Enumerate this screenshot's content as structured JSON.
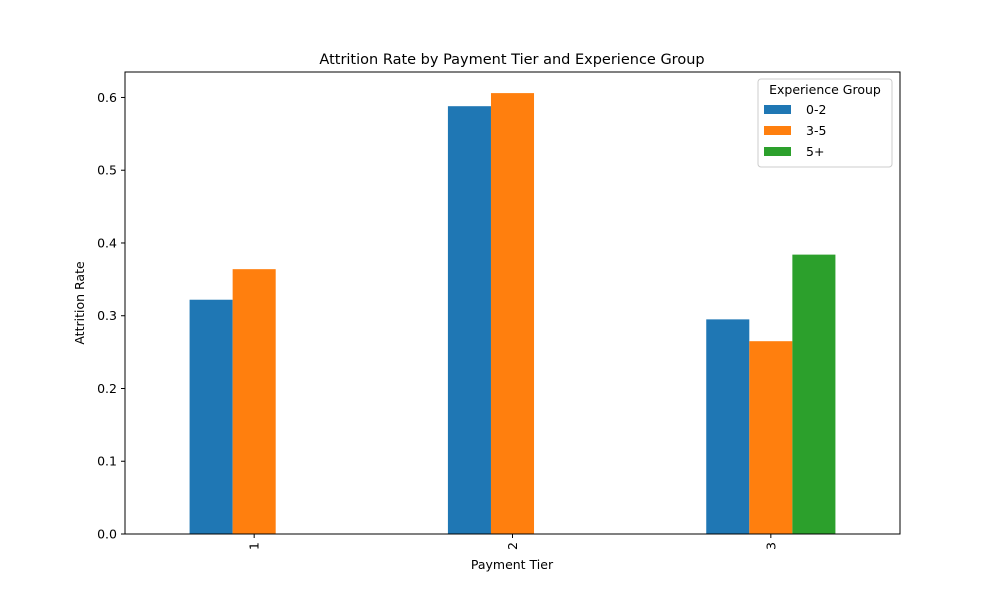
{
  "chart_data": {
    "type": "bar",
    "title": "Attrition Rate by Payment Tier and Experience Group",
    "xlabel": "Payment Tier",
    "ylabel": "Attrition Rate",
    "categories": [
      "1",
      "2",
      "3"
    ],
    "ylim": [
      0,
      0.635
    ],
    "yticks": [
      0.0,
      0.1,
      0.2,
      0.3,
      0.4,
      0.5,
      0.6
    ],
    "ytick_labels": [
      "0.0",
      "0.1",
      "0.2",
      "0.3",
      "0.4",
      "0.5",
      "0.6"
    ],
    "grid": false,
    "legend": {
      "title": "Experience Group",
      "position": "top-right"
    },
    "series": [
      {
        "name": "0-2",
        "color": "#1f77b4",
        "values": [
          0.322,
          0.588,
          0.295
        ]
      },
      {
        "name": "3-5",
        "color": "#ff7f0e",
        "values": [
          0.364,
          0.606,
          0.265
        ]
      },
      {
        "name": "5+",
        "color": "#2ca02c",
        "values": [
          null,
          null,
          0.384
        ]
      }
    ]
  }
}
